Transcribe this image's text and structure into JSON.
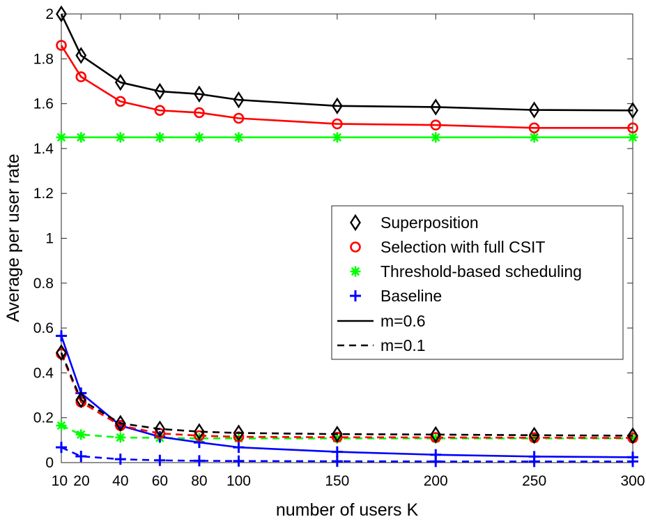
{
  "chart_data": {
    "type": "line",
    "title": "",
    "xlabel": "number of users K",
    "ylabel": "Average per user rate",
    "xlim": [
      10,
      300
    ],
    "ylim": [
      0,
      2
    ],
    "x": [
      10,
      20,
      40,
      60,
      80,
      100,
      150,
      200,
      250,
      300
    ],
    "xticks": [
      10,
      20,
      40,
      60,
      80,
      100,
      150,
      200,
      250,
      300
    ],
    "xtick_labels": [
      "10",
      "20",
      "40",
      "60",
      "80",
      "100",
      "150",
      "200",
      "250",
      "300"
    ],
    "yticks": [
      0,
      0.2,
      0.4,
      0.6,
      0.8,
      1,
      1.2,
      1.4,
      1.6,
      1.8,
      2
    ],
    "ytick_labels": [
      "0",
      "0.2",
      "0.4",
      "0.6",
      "0.8",
      "1",
      "1.2",
      "1.4",
      "1.6",
      "1.8",
      "2"
    ],
    "grid": false,
    "legend_position": "center-right",
    "legend": [
      {
        "label": "Superposition",
        "marker": "diamond",
        "color": "#000000"
      },
      {
        "label": "Selection with full CSIT",
        "marker": "circle",
        "color": "#ff0000"
      },
      {
        "label": "Threshold-based scheduling",
        "marker": "asterisk",
        "color": "#00ff00"
      },
      {
        "label": "Baseline",
        "marker": "plus",
        "color": "#0000ff"
      },
      {
        "label": "m=0.6",
        "line": "solid",
        "color": "#000000"
      },
      {
        "label": "m=0.1",
        "line": "dashed",
        "color": "#000000"
      }
    ],
    "series": [
      {
        "name": "Superposition, m=0.6",
        "scheme": "Superposition",
        "m": 0.6,
        "color": "#000000",
        "marker": "diamond",
        "dashed": false,
        "values": [
          2.0,
          1.815,
          1.695,
          1.655,
          1.643,
          1.617,
          1.59,
          1.585,
          1.572,
          1.57
        ]
      },
      {
        "name": "Selection with full CSIT, m=0.6",
        "scheme": "Selection with full CSIT",
        "m": 0.6,
        "color": "#ff0000",
        "marker": "circle",
        "dashed": false,
        "values": [
          1.86,
          1.72,
          1.61,
          1.57,
          1.56,
          1.535,
          1.51,
          1.505,
          1.492,
          1.492
        ]
      },
      {
        "name": "Threshold-based scheduling, m=0.6",
        "scheme": "Threshold-based scheduling",
        "m": 0.6,
        "color": "#00ff00",
        "marker": "asterisk",
        "dashed": false,
        "values": [
          1.45,
          1.45,
          1.45,
          1.45,
          1.45,
          1.45,
          1.45,
          1.45,
          1.45,
          1.45
        ]
      },
      {
        "name": "Baseline, m=0.6",
        "scheme": "Baseline",
        "m": 0.6,
        "color": "#0000ff",
        "marker": "plus",
        "dashed": false,
        "values": [
          0.565,
          0.31,
          0.165,
          0.115,
          0.09,
          0.068,
          0.048,
          0.035,
          0.027,
          0.024
        ]
      },
      {
        "name": "Superposition, m=0.1",
        "scheme": "Superposition",
        "m": 0.1,
        "color": "#000000",
        "marker": "diamond",
        "dashed": true,
        "values": [
          0.49,
          0.28,
          0.175,
          0.15,
          0.138,
          0.132,
          0.127,
          0.125,
          0.122,
          0.12
        ]
      },
      {
        "name": "Selection with full CSIT, m=0.1",
        "scheme": "Selection with full CSIT",
        "m": 0.1,
        "color": "#ff0000",
        "marker": "circle",
        "dashed": true,
        "values": [
          0.485,
          0.27,
          0.165,
          0.13,
          0.12,
          0.115,
          0.113,
          0.112,
          0.111,
          0.11
        ]
      },
      {
        "name": "Threshold-based scheduling, m=0.1",
        "scheme": "Threshold-based scheduling",
        "m": 0.1,
        "color": "#00ff00",
        "marker": "asterisk",
        "dashed": true,
        "values": [
          0.165,
          0.125,
          0.112,
          0.11,
          0.108,
          0.108,
          0.108,
          0.108,
          0.108,
          0.108
        ]
      },
      {
        "name": "Baseline, m=0.1",
        "scheme": "Baseline",
        "m": 0.1,
        "color": "#0000ff",
        "marker": "plus",
        "dashed": true,
        "values": [
          0.068,
          0.028,
          0.015,
          0.01,
          0.008,
          0.007,
          0.006,
          0.005,
          0.005,
          0.005
        ]
      }
    ]
  }
}
